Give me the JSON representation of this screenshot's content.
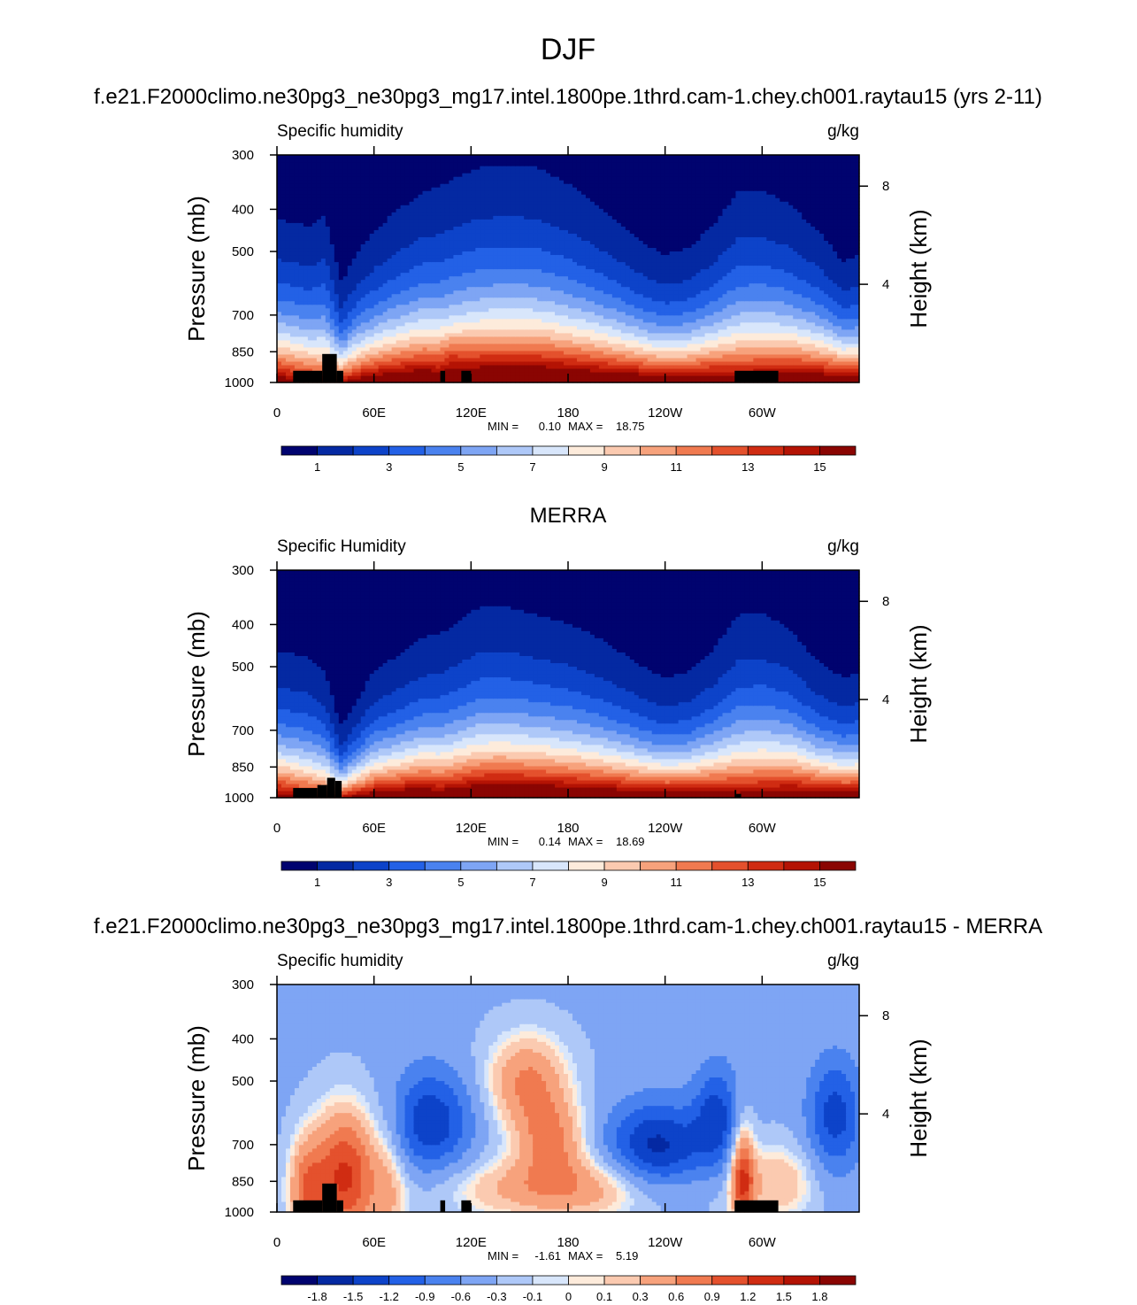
{
  "page_title": "DJF",
  "chart_data": [
    {
      "type": "heatmap",
      "panel_title": "f.e21.F2000climo.ne30pg3_ne30pg3_mg17.intel.1800pe.1thrd.cam-1.chey.ch001.raytau15 (yrs 2-11)",
      "variable": "Specific humidity",
      "units": "g/kg",
      "ylabel": "Pressure (mb)",
      "ylabel_right": "Height (km)",
      "yticks": [
        "300",
        "400",
        "500",
        "700",
        "850",
        "1000"
      ],
      "yticks_right": [
        "8",
        "4"
      ],
      "xticks": [
        "0",
        "60E",
        "120E",
        "180",
        "120W",
        "60W"
      ],
      "stats": {
        "min_label": "MIN =",
        "min": "0.10",
        "max_label": "MAX =",
        "max": "18.75"
      },
      "colorbar_labels": [
        "1",
        "3",
        "5",
        "7",
        "9",
        "11",
        "13",
        "15"
      ],
      "colors": [
        "#00036f",
        "#0429a2",
        "#0d43c9",
        "#2361e6",
        "#4a82ef",
        "#7ea5f4",
        "#aec8f8",
        "#d8e6fb",
        "#fdebdb",
        "#fbcab0",
        "#f7a27c",
        "#f07a50",
        "#e4512d",
        "#d02c12",
        "#b41304",
        "#8a0502"
      ],
      "levels": [
        0,
        1,
        2,
        3,
        4,
        5,
        6,
        7,
        8,
        9,
        10,
        11,
        12,
        13,
        14,
        15,
        16
      ],
      "data_range": [
        0.1,
        18.75
      ]
    },
    {
      "type": "heatmap",
      "panel_title": "MERRA",
      "variable": "Specific Humidity",
      "units": "g/kg",
      "ylabel": "Pressure (mb)",
      "ylabel_right": "Height (km)",
      "yticks": [
        "300",
        "400",
        "500",
        "700",
        "850",
        "1000"
      ],
      "yticks_right": [
        "8",
        "4"
      ],
      "xticks": [
        "0",
        "60E",
        "120E",
        "180",
        "120W",
        "60W"
      ],
      "stats": {
        "min_label": "MIN =",
        "min": "0.14",
        "max_label": "MAX =",
        "max": "18.69"
      },
      "colorbar_labels": [
        "1",
        "3",
        "5",
        "7",
        "9",
        "11",
        "13",
        "15"
      ],
      "colors": [
        "#00036f",
        "#0429a2",
        "#0d43c9",
        "#2361e6",
        "#4a82ef",
        "#7ea5f4",
        "#aec8f8",
        "#d8e6fb",
        "#fdebdb",
        "#fbcab0",
        "#f7a27c",
        "#f07a50",
        "#e4512d",
        "#d02c12",
        "#b41304",
        "#8a0502"
      ],
      "levels": [
        0,
        1,
        2,
        3,
        4,
        5,
        6,
        7,
        8,
        9,
        10,
        11,
        12,
        13,
        14,
        15,
        16
      ],
      "data_range": [
        0.14,
        18.69
      ]
    },
    {
      "type": "heatmap",
      "panel_title": "f.e21.F2000climo.ne30pg3_ne30pg3_mg17.intel.1800pe.1thrd.cam-1.chey.ch001.raytau15 - MERRA",
      "variable": "Specific humidity",
      "units": "g/kg",
      "ylabel": "Pressure (mb)",
      "ylabel_right": "Height (km)",
      "yticks": [
        "300",
        "400",
        "500",
        "700",
        "850",
        "1000"
      ],
      "yticks_right": [
        "8",
        "4"
      ],
      "xticks": [
        "0",
        "60E",
        "120E",
        "180",
        "120W",
        "60W"
      ],
      "stats": {
        "min_label": "MIN =",
        "min": "-1.61",
        "max_label": "MAX =",
        "max": "5.19"
      },
      "colorbar_labels": [
        "-1.8",
        "-1.5",
        "-1.2",
        "-0.9",
        "-0.6",
        "-0.3",
        "-0.1",
        "0",
        "0.1",
        "0.3",
        "0.6",
        "0.9",
        "1.2",
        "1.5",
        "1.8"
      ],
      "colors": [
        "#00036f",
        "#0429a2",
        "#0d43c9",
        "#2361e6",
        "#4a82ef",
        "#7ea5f4",
        "#aec8f8",
        "#d8e6fb",
        "#fdebdb",
        "#fbcab0",
        "#f7a27c",
        "#f07a50",
        "#e4512d",
        "#d02c12",
        "#b41304",
        "#8a0502"
      ],
      "levels": [
        -2.1,
        -1.8,
        -1.5,
        -1.2,
        -0.9,
        -0.6,
        -0.3,
        -0.1,
        0,
        0.1,
        0.3,
        0.6,
        0.9,
        1.2,
        1.5,
        1.8,
        2.1
      ],
      "data_range": [
        -1.61,
        5.19
      ]
    }
  ]
}
